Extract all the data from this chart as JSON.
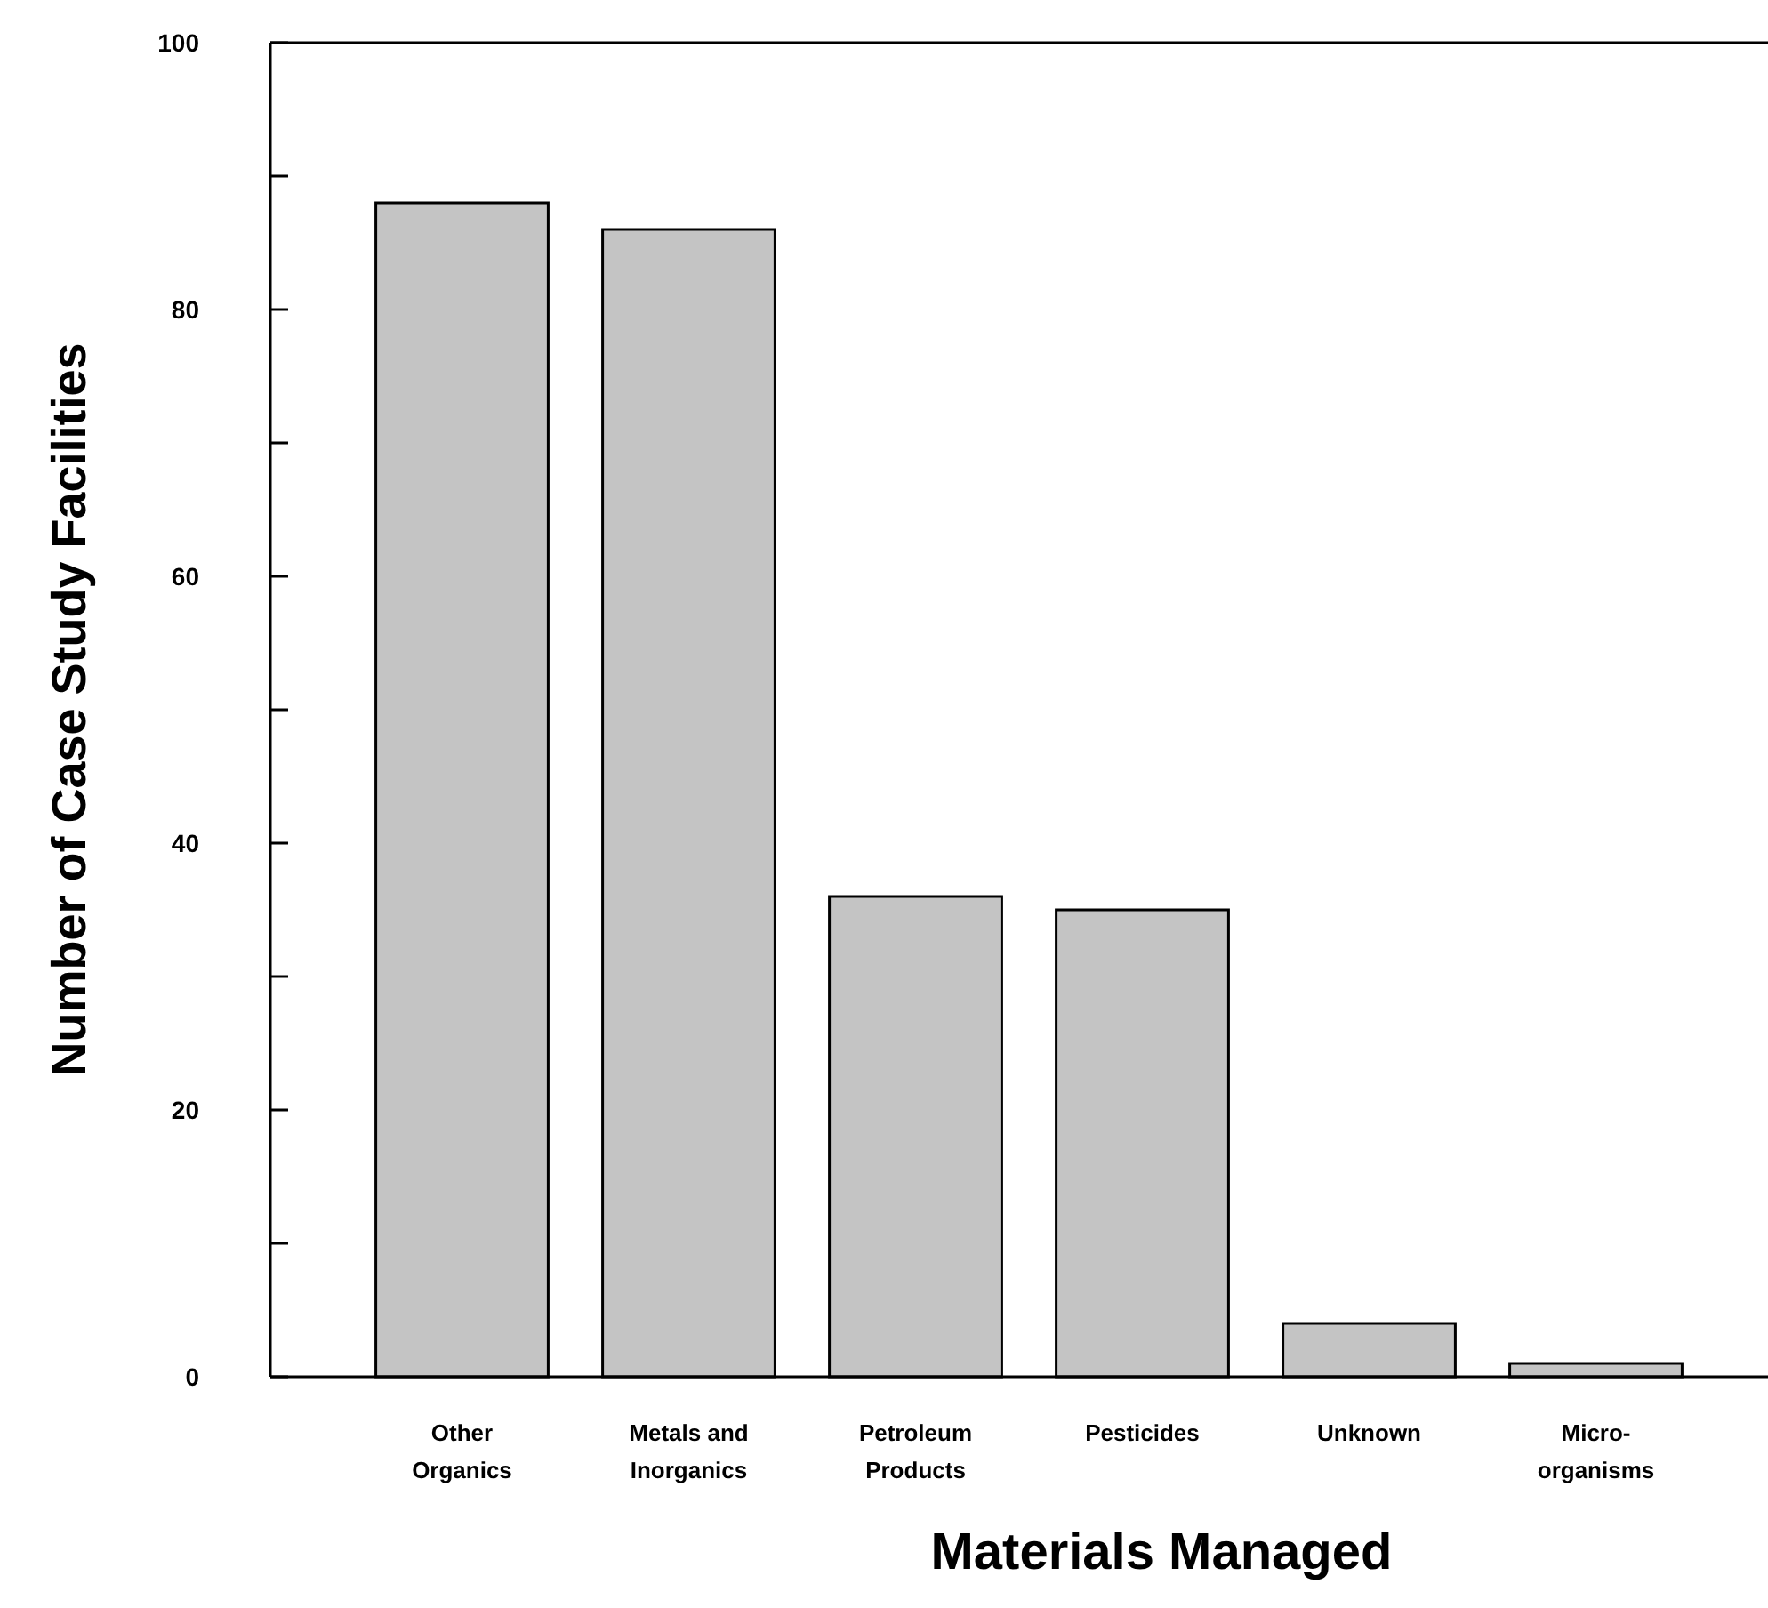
{
  "chart_data": {
    "type": "bar",
    "xlabel": "Materials Managed",
    "ylabel": "Number of Case Study Facilities",
    "categories": [
      "Other\nOrganics",
      "Metals and\nInorganics",
      "Petroleum\nProducts",
      "Pesticides",
      "Unknown",
      "Micro-\norganisms"
    ],
    "values": [
      88,
      86,
      36,
      35,
      4,
      1
    ],
    "color": "#c4c4c4",
    "ylim": [
      0,
      100
    ],
    "yticks": [
      0,
      {
        "value": 10,
        "label": null
      },
      20,
      {
        "value": 30,
        "label": null
      },
      40,
      {
        "value": 50,
        "label": null
      },
      60,
      {
        "value": 70,
        "label": null
      },
      80,
      {
        "value": 90,
        "label": null
      },
      100
    ],
    "grid": false
  }
}
